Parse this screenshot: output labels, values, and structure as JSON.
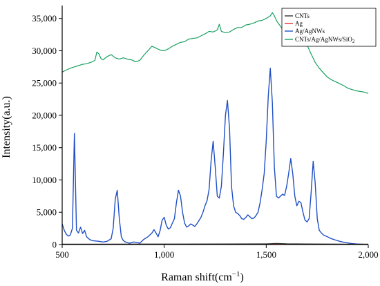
{
  "chart_data": {
    "type": "line",
    "xlabel": "Raman shift(cm",
    "xlabel_sup": "−1",
    "xlabel_end": ")",
    "ylabel": "Intensity(a.u.)",
    "xlim": [
      500,
      2000
    ],
    "ylim": [
      0,
      37000
    ],
    "xticks": [
      500,
      1000,
      1500,
      2000
    ],
    "xtick_labels": [
      "500",
      "1,000",
      "1,500",
      "2,000"
    ],
    "yticks": [
      0,
      5000,
      10000,
      15000,
      20000,
      25000,
      30000,
      35000
    ],
    "ytick_labels": [
      "0",
      "5,000",
      "10,000",
      "15,000",
      "20,000",
      "25,000",
      "30,000",
      "35,000"
    ],
    "grid": false,
    "legend_position": "top-right",
    "series": [
      {
        "name": "CNTs",
        "color": "#333333",
        "x": [
          500,
          700,
          900,
          1100,
          1300,
          1500,
          1550,
          1600,
          1700,
          1800,
          1900,
          2000
        ],
        "y": [
          80,
          80,
          90,
          90,
          100,
          110,
          180,
          120,
          100,
          90,
          80,
          80
        ]
      },
      {
        "name": "Ag",
        "color": "#e03030",
        "x": [
          500,
          700,
          900,
          1100,
          1300,
          1500,
          1700,
          1900,
          2000
        ],
        "y": [
          30,
          40,
          40,
          50,
          60,
          60,
          50,
          40,
          40
        ]
      },
      {
        "name": "Ag/AgNWs",
        "color": "#1f4fc4",
        "x": [
          500,
          510,
          520,
          530,
          540,
          550,
          560,
          570,
          580,
          590,
          600,
          610,
          620,
          630,
          640,
          650,
          680,
          700,
          720,
          740,
          750,
          760,
          770,
          780,
          790,
          800,
          810,
          830,
          850,
          870,
          880,
          900,
          920,
          940,
          950,
          960,
          970,
          980,
          990,
          1000,
          1010,
          1020,
          1030,
          1050,
          1060,
          1070,
          1080,
          1090,
          1100,
          1110,
          1120,
          1130,
          1140,
          1150,
          1160,
          1170,
          1180,
          1190,
          1200,
          1210,
          1220,
          1230,
          1240,
          1250,
          1260,
          1270,
          1280,
          1290,
          1300,
          1310,
          1320,
          1330,
          1340,
          1350,
          1360,
          1370,
          1380,
          1390,
          1400,
          1410,
          1420,
          1430,
          1440,
          1450,
          1460,
          1470,
          1480,
          1490,
          1500,
          1510,
          1520,
          1530,
          1540,
          1550,
          1560,
          1570,
          1580,
          1590,
          1600,
          1610,
          1620,
          1630,
          1640,
          1650,
          1660,
          1670,
          1680,
          1690,
          1700,
          1710,
          1720,
          1730,
          1740,
          1750,
          1760,
          1770,
          1780,
          1800,
          1820,
          1840,
          1860,
          1880,
          1900,
          1920,
          1940,
          1960,
          1980,
          2000
        ],
        "y": [
          3200,
          2200,
          1600,
          1300,
          1500,
          2500,
          17200,
          2200,
          1800,
          2700,
          1700,
          2200,
          1200,
          900,
          700,
          600,
          500,
          400,
          500,
          900,
          2500,
          7000,
          8400,
          4000,
          1200,
          600,
          400,
          200,
          400,
          300,
          200,
          800,
          1200,
          1800,
          2300,
          1800,
          1200,
          2200,
          3800,
          4200,
          3000,
          2400,
          2600,
          4000,
          6500,
          8400,
          7500,
          5000,
          3300,
          2700,
          2900,
          3200,
          3000,
          2800,
          3200,
          3700,
          4200,
          5000,
          6000,
          6800,
          8500,
          13000,
          16000,
          12000,
          7500,
          7200,
          9000,
          14000,
          20000,
          22300,
          18000,
          9000,
          6000,
          5000,
          4800,
          4500,
          4000,
          3900,
          4200,
          4600,
          4300,
          4000,
          4100,
          4500,
          5000,
          6500,
          8500,
          11000,
          16000,
          23000,
          27300,
          22000,
          12000,
          7500,
          7200,
          7500,
          7800,
          7600,
          9000,
          11000,
          13300,
          11000,
          7500,
          6000,
          6700,
          6500,
          5000,
          3800,
          3500,
          4000,
          8000,
          12900,
          9500,
          4000,
          2200,
          1800,
          1500,
          1200,
          900,
          700,
          500,
          350,
          250,
          150,
          100,
          60,
          30,
          20
        ]
      },
      {
        "name": "CNTs/Ag/AgNWs/SiO",
        "name_sub": "2",
        "color": "#18a060",
        "x": [
          500,
          520,
          540,
          560,
          580,
          600,
          620,
          640,
          660,
          670,
          680,
          690,
          700,
          720,
          740,
          760,
          780,
          800,
          820,
          840,
          860,
          880,
          900,
          920,
          940,
          960,
          980,
          1000,
          1020,
          1040,
          1060,
          1080,
          1100,
          1120,
          1140,
          1160,
          1180,
          1200,
          1220,
          1240,
          1260,
          1270,
          1280,
          1300,
          1320,
          1340,
          1360,
          1380,
          1400,
          1420,
          1440,
          1460,
          1480,
          1500,
          1510,
          1520,
          1530,
          1540,
          1550,
          1560,
          1570,
          1580,
          1600,
          1620,
          1640,
          1660,
          1680,
          1700,
          1720,
          1740,
          1760,
          1780,
          1800,
          1820,
          1840,
          1860,
          1880,
          1900,
          1920,
          1940,
          1960,
          1980,
          2000
        ],
        "y": [
          26700,
          27000,
          27300,
          27500,
          27700,
          27900,
          28000,
          28200,
          28500,
          29800,
          29500,
          28800,
          28600,
          29100,
          29400,
          28900,
          28700,
          28900,
          28700,
          28600,
          28300,
          28500,
          29300,
          30000,
          30700,
          30400,
          30100,
          30000,
          30300,
          30700,
          31000,
          31300,
          31400,
          31800,
          31900,
          32000,
          32300,
          32600,
          33000,
          32900,
          33200,
          34100,
          33000,
          32800,
          32900,
          33300,
          33600,
          33600,
          34000,
          34100,
          34300,
          34600,
          34700,
          35000,
          35200,
          35400,
          35900,
          35400,
          34700,
          34200,
          33800,
          33300,
          33500,
          33800,
          32900,
          32500,
          31800,
          30900,
          29500,
          28200,
          27300,
          26600,
          25900,
          25500,
          25200,
          24900,
          24600,
          24200,
          24000,
          23800,
          23700,
          23600,
          23400
        ]
      }
    ]
  }
}
